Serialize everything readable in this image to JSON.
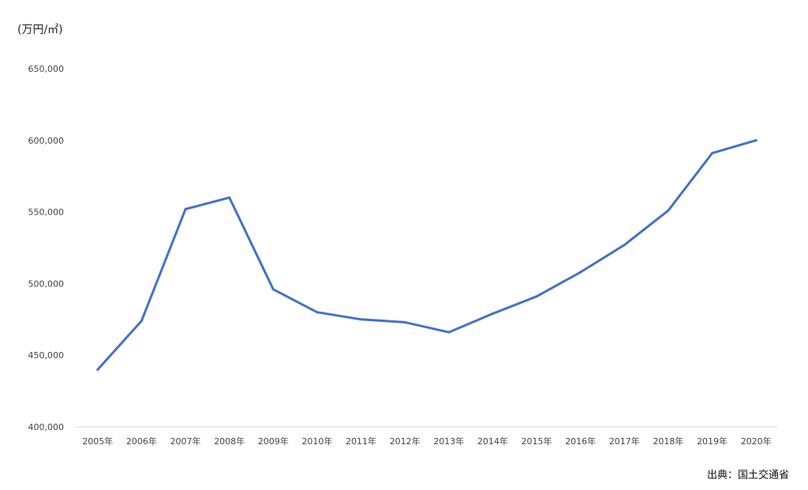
{
  "chart_data": {
    "type": "line",
    "title": "",
    "xlabel": "",
    "ylabel": "(万円/㎡)",
    "source": "出典：国土交通省",
    "grid": false,
    "legend": "none",
    "ylim": [
      400000,
      650000
    ],
    "yticks": [
      400000,
      450000,
      500000,
      550000,
      600000,
      650000
    ],
    "ytick_labels": [
      "400,000",
      "450,000",
      "500,000",
      "550,000",
      "600,000",
      "650,000"
    ],
    "categories": [
      "2005年",
      "2006年",
      "2007年",
      "2008年",
      "2009年",
      "2010年",
      "2011年",
      "2012年",
      "2013年",
      "2014年",
      "2015年",
      "2016年",
      "2017年",
      "2018年",
      "2019年",
      "2020年"
    ],
    "series": [
      {
        "color": "#4472C4",
        "values": [
          440000,
          474000,
          552000,
          560000,
          496000,
          480000,
          475000,
          473000,
          466000,
          479000,
          491000,
          508000,
          527000,
          551000,
          591000,
          600000
        ]
      }
    ]
  }
}
